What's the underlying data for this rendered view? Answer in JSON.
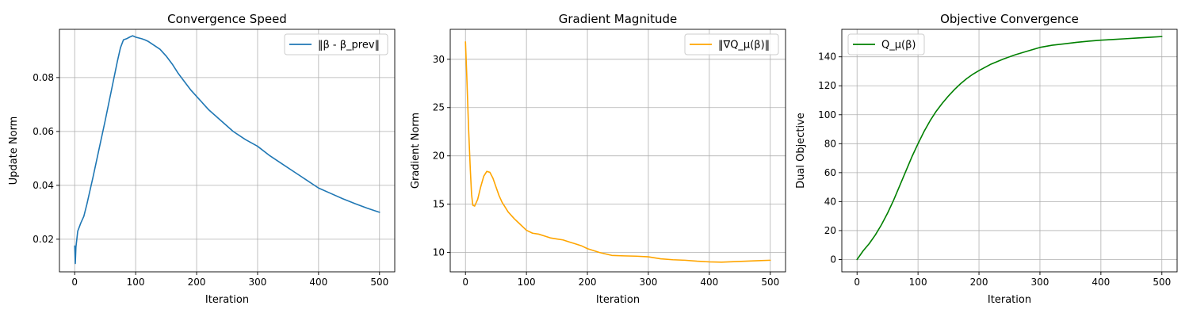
{
  "chart_data": [
    {
      "type": "line",
      "title": "Convergence Speed",
      "xlabel": "Iteration",
      "ylabel": "Update Norm",
      "xlim": [
        -25,
        525
      ],
      "ylim": [
        0.0079,
        0.0979
      ],
      "xticks": [
        0,
        100,
        200,
        300,
        400,
        500
      ],
      "xtick_labels": [
        "0",
        "100",
        "200",
        "300",
        "400",
        "500"
      ],
      "yticks": [
        0.02,
        0.04,
        0.06,
        0.08
      ],
      "ytick_labels": [
        "0.02",
        "0.04",
        "0.06",
        "0.08"
      ],
      "grid": true,
      "legend_position": "upper right",
      "series": [
        {
          "name": "‖β - β_prev‖",
          "color": "#1f77b4",
          "x": [
            0,
            1,
            2,
            5,
            10,
            15,
            20,
            30,
            40,
            50,
            60,
            70,
            75,
            80,
            85,
            90,
            95,
            100,
            110,
            115,
            120,
            130,
            140,
            150,
            160,
            170,
            180,
            190,
            200,
            210,
            220,
            240,
            260,
            280,
            300,
            320,
            340,
            360,
            380,
            400,
            420,
            440,
            460,
            480,
            500
          ],
          "y": [
            0.0175,
            0.011,
            0.017,
            0.023,
            0.026,
            0.0285,
            0.033,
            0.043,
            0.0535,
            0.064,
            0.075,
            0.086,
            0.091,
            0.094,
            0.0944,
            0.095,
            0.0955,
            0.095,
            0.0944,
            0.094,
            0.0935,
            0.092,
            0.0905,
            0.088,
            0.085,
            0.0815,
            0.0785,
            0.0755,
            0.073,
            0.0705,
            0.068,
            0.064,
            0.06,
            0.057,
            0.0545,
            0.051,
            0.048,
            0.045,
            0.042,
            0.039,
            0.037,
            0.035,
            0.0332,
            0.0315,
            0.03
          ]
        }
      ]
    },
    {
      "type": "line",
      "title": "Gradient Magnitude",
      "xlabel": "Iteration",
      "ylabel": "Gradient Norm",
      "xlim": [
        -25,
        525
      ],
      "ylim": [
        8.0,
        33.1
      ],
      "xticks": [
        0,
        100,
        200,
        300,
        400,
        500
      ],
      "xtick_labels": [
        "0",
        "100",
        "200",
        "300",
        "400",
        "500"
      ],
      "yticks": [
        10,
        15,
        20,
        25,
        30
      ],
      "ytick_labels": [
        "10",
        "15",
        "20",
        "25",
        "30"
      ],
      "grid": true,
      "legend_position": "upper right",
      "series": [
        {
          "name": "‖∇Q_μ(β)‖",
          "color": "#ffa500",
          "x": [
            0,
            2,
            5,
            8,
            10,
            12,
            15,
            20,
            25,
            30,
            35,
            40,
            45,
            50,
            55,
            60,
            70,
            80,
            90,
            100,
            110,
            120,
            130,
            140,
            150,
            160,
            170,
            180,
            190,
            200,
            220,
            240,
            260,
            280,
            300,
            320,
            340,
            360,
            380,
            400,
            420,
            440,
            460,
            480,
            500
          ],
          "y": [
            31.8,
            28.5,
            23.0,
            18.5,
            16.0,
            14.9,
            14.8,
            15.5,
            16.8,
            17.9,
            18.4,
            18.3,
            17.7,
            16.8,
            15.9,
            15.2,
            14.2,
            13.5,
            12.9,
            12.3,
            12.0,
            11.9,
            11.7,
            11.5,
            11.4,
            11.3,
            11.1,
            10.9,
            10.7,
            10.4,
            10.0,
            9.7,
            9.65,
            9.62,
            9.55,
            9.35,
            9.25,
            9.2,
            9.1,
            9.03,
            9.0,
            9.05,
            9.1,
            9.15,
            9.2
          ]
        }
      ]
    },
    {
      "type": "line",
      "title": "Objective Convergence",
      "xlabel": "Iteration",
      "ylabel": "Dual Objective",
      "xlim": [
        -25,
        525
      ],
      "ylim": [
        -8.5,
        159
      ],
      "xticks": [
        0,
        100,
        200,
        300,
        400,
        500
      ],
      "xtick_labels": [
        "0",
        "100",
        "200",
        "300",
        "400",
        "500"
      ],
      "yticks": [
        0,
        20,
        40,
        60,
        80,
        100,
        120,
        140
      ],
      "ytick_labels": [
        "0",
        "20",
        "40",
        "60",
        "80",
        "100",
        "120",
        "140"
      ],
      "grid": true,
      "legend_position": "upper left",
      "series": [
        {
          "name": "Q_μ(β)",
          "color": "#008000",
          "x": [
            0,
            5,
            10,
            20,
            30,
            40,
            50,
            60,
            70,
            80,
            90,
            100,
            110,
            120,
            130,
            140,
            150,
            160,
            170,
            180,
            190,
            200,
            220,
            240,
            260,
            280,
            300,
            320,
            340,
            360,
            380,
            400,
            420,
            440,
            460,
            480,
            500
          ],
          "y": [
            0,
            3,
            6,
            11,
            17,
            24,
            32,
            41,
            51,
            61,
            71,
            80,
            88.5,
            96,
            102.5,
            108,
            113,
            117.5,
            121.5,
            125,
            128,
            130.5,
            135,
            138.5,
            141.5,
            144,
            146.5,
            148,
            149,
            150,
            150.8,
            151.5,
            152,
            152.5,
            153,
            153.5,
            154
          ]
        }
      ]
    }
  ]
}
